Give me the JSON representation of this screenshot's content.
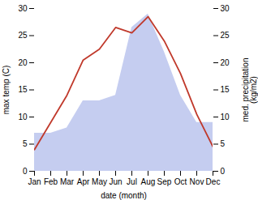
{
  "chart_data": {
    "type": "line",
    "xlabel": "date (month)",
    "ylabel": "max temp (C)",
    "y2label": "med. precipitation\n(kg/m2)",
    "categories": [
      "Jan",
      "Feb",
      "Mar",
      "Apr",
      "May",
      "Jun",
      "Jul",
      "Aug",
      "Sep",
      "Oct",
      "Nov",
      "Dec"
    ],
    "series": [
      {
        "type": "area",
        "axis": "y2",
        "color": "#c5cdf0",
        "values": [
          7.0,
          7.0,
          8.0,
          13.0,
          13.0,
          14.0,
          26.5,
          29.0,
          22.0,
          14.0,
          9.0,
          9.0
        ]
      },
      {
        "type": "line",
        "color": "#c0392b",
        "values": [
          4.0,
          9.0,
          14.0,
          20.5,
          22.5,
          26.5,
          25.5,
          28.5,
          24.0,
          18.0,
          10.5,
          4.5
        ]
      }
    ],
    "ylim": [
      0,
      30
    ],
    "yticks": [
      0,
      5,
      10,
      15,
      20,
      25,
      30
    ],
    "y2lim": [
      0,
      30
    ],
    "y2ticks": [
      0,
      5,
      10,
      15,
      20,
      25,
      30
    ]
  }
}
